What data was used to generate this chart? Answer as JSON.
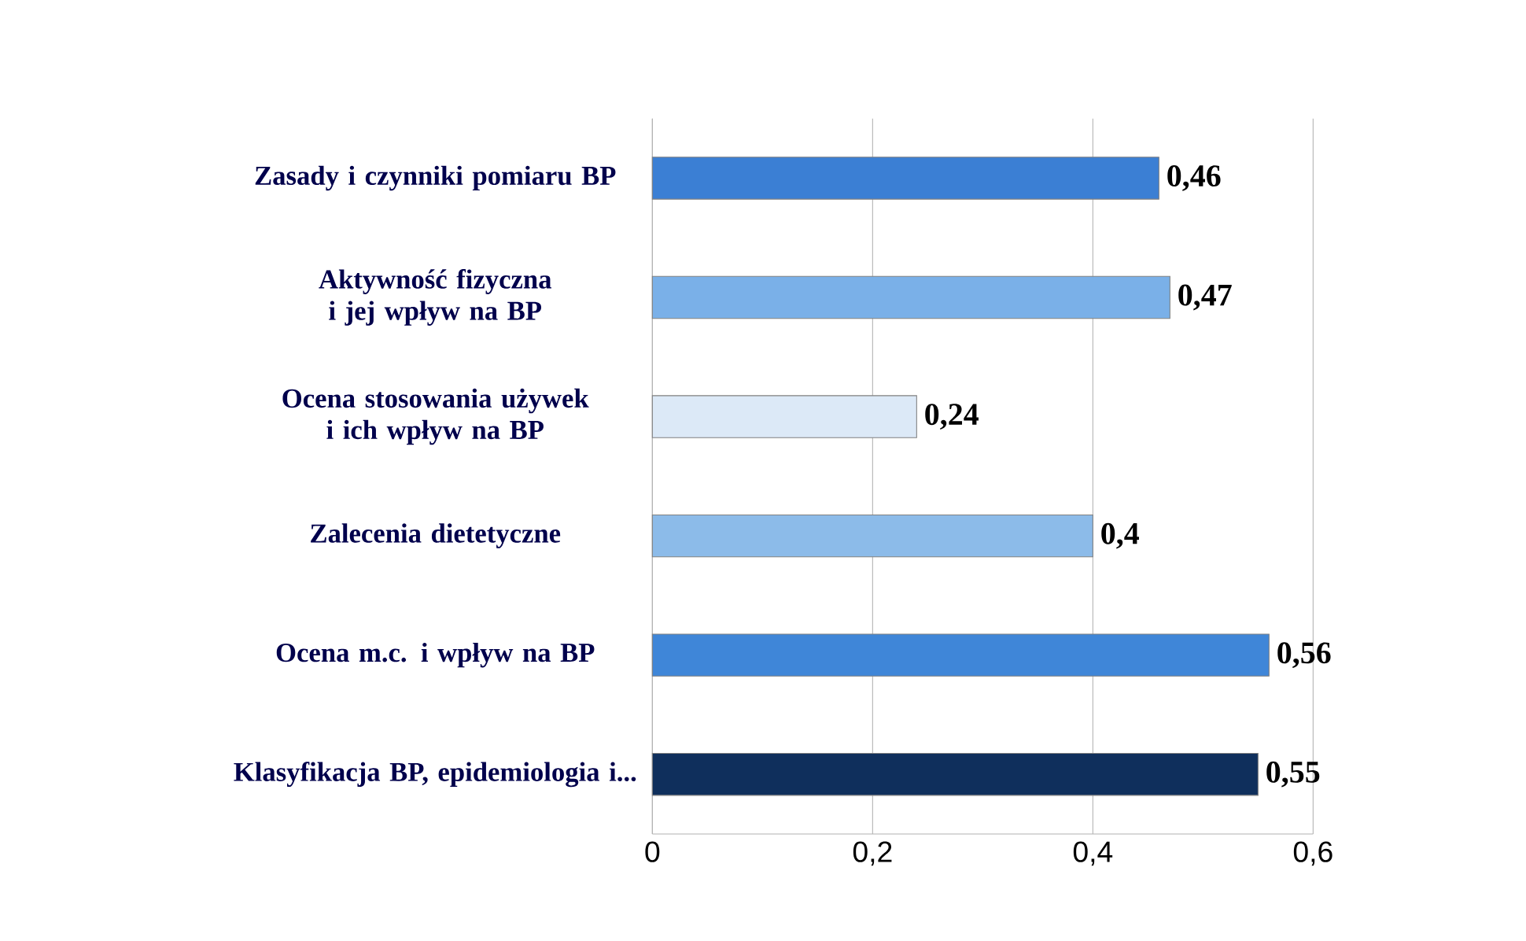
{
  "chart_data": {
    "type": "bar",
    "orientation": "horizontal",
    "categories": [
      "Zasady i czynniki pomiaru BP",
      "Aktywność fizyczna i jej wpływ na BP",
      "Ocena stosowania używek i ich wpływ na BP",
      "Zalecenia dietetyczne",
      "Ocena m.c. i wpływ na BP",
      "Klasyfikacja BP, epidemiologia i..."
    ],
    "values": [
      0.46,
      0.47,
      0.24,
      0.4,
      0.56,
      0.55
    ],
    "value_labels": [
      "0,46",
      "0,47",
      "0,24",
      "0,4",
      "0,56",
      "0,55"
    ],
    "colors": [
      "#3b7fd4",
      "#7ab0e8",
      "#dce9f7",
      "#8cbbe9",
      "#3f86d8",
      "#0f2f5c"
    ],
    "xlim": [
      0,
      0.6
    ],
    "xticks": [
      0,
      {
        "value": 0.2,
        "label": "0,2"
      },
      {
        "value": 0.4,
        "label": "0,4"
      },
      {
        "value": 0.6,
        "label": "0,6"
      }
    ],
    "grid": "x"
  }
}
